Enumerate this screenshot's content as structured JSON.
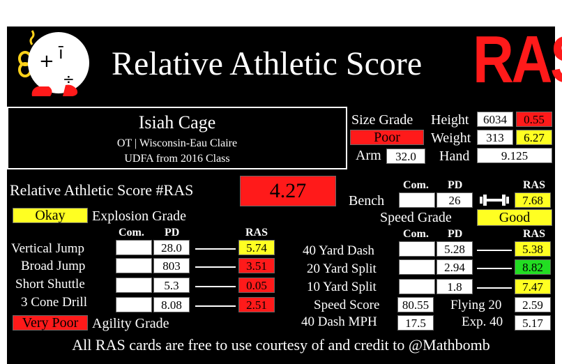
{
  "header": {
    "title": "Relative Athletic Score",
    "logo_text": "RAS"
  },
  "player": {
    "name": "Isiah Cage",
    "position_school": "OT | Wisconsin-Eau Claire",
    "draft": "UDFA from 2016 Class"
  },
  "size": {
    "label": "Size Grade",
    "grade": "Poor",
    "grade_color": "#ff1a1a",
    "height_label": "Height",
    "height": "6034",
    "height_ras": "0.55",
    "height_color": "#ff1a1a",
    "weight_label": "Weight",
    "weight": "313",
    "weight_ras": "6.27",
    "weight_color": "#ffff22",
    "arm_label": "Arm",
    "arm": "32.0",
    "hand_label": "Hand",
    "hand": "9.125"
  },
  "overall": {
    "label": "Relative Athletic Score #RAS",
    "score": "4.27",
    "color": "#ff1a1a"
  },
  "explosion": {
    "grade": "Okay",
    "grade_color": "#ffff22",
    "label": "Explosion Grade"
  },
  "agility": {
    "grade": "Very Poor",
    "grade_color": "#ff1a1a",
    "label": "Agility Grade"
  },
  "columns": {
    "com": "Com.",
    "pd": "PD",
    "ras": "RAS"
  },
  "left_drills": [
    {
      "label": "Vertical Jump",
      "com": "",
      "pd": "28.0",
      "ras": "5.74",
      "color": "#ffff22"
    },
    {
      "label": "Broad Jump",
      "com": "",
      "pd": "803",
      "ras": "3.51",
      "color": "#ff1a1a"
    },
    {
      "label": "Short Shuttle",
      "com": "",
      "pd": "5.3",
      "ras": "0.05",
      "color": "#ff1a1a"
    },
    {
      "label": "3 Cone Drill",
      "com": "",
      "pd": "8.08",
      "ras": "2.51",
      "color": "#ff1a1a"
    }
  ],
  "bench": {
    "label": "Bench",
    "com": "",
    "pd": "26",
    "ras": "7.68",
    "color": "#ffff22"
  },
  "speed": {
    "label": "Speed Grade",
    "grade": "Good",
    "grade_color": "#ffff22"
  },
  "right_drills": [
    {
      "label": "40 Yard Dash",
      "com": "",
      "pd": "5.28",
      "ras": "5.38",
      "color": "#ffff22"
    },
    {
      "label": "20 Yard Split",
      "com": "",
      "pd": "2.94",
      "ras": "8.82",
      "color": "#22dd22"
    },
    {
      "label": "10 Yard Split",
      "com": "",
      "pd": "1.8",
      "ras": "7.47",
      "color": "#ffff22"
    }
  ],
  "extras": {
    "speed_score_label": "Speed Score",
    "speed_score": "80.55",
    "flying20_label": "Flying 20",
    "flying20": "2.59",
    "mph_label": "40 Dash MPH",
    "mph": "17.5",
    "exp40_label": "Exp. 40",
    "exp40": "5.17"
  },
  "footer": "All RAS cards are free to use courtesy of and credit to @Mathbomb"
}
